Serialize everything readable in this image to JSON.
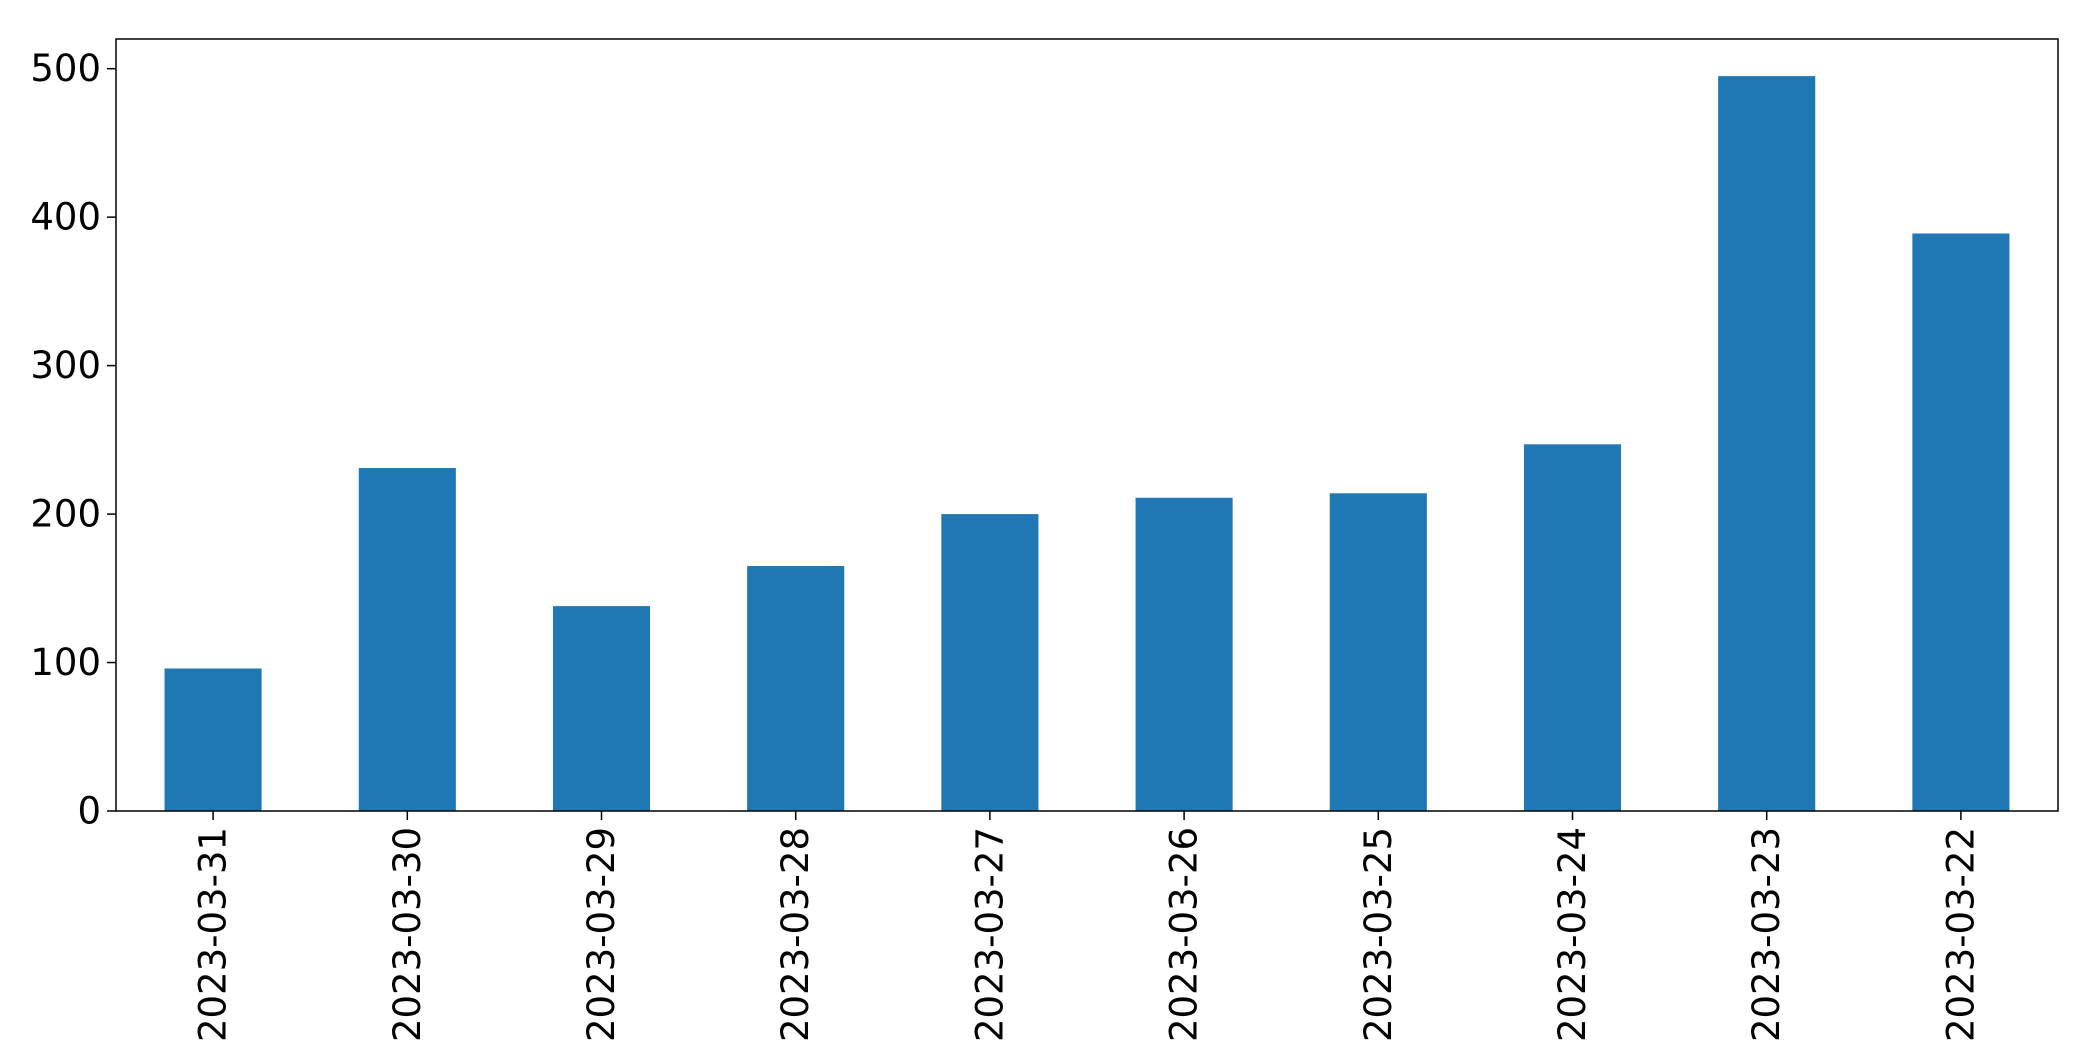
{
  "chart_data": {
    "type": "bar",
    "title": "",
    "xlabel": "",
    "ylabel": "",
    "categories": [
      "2023-03-31",
      "2023-03-30",
      "2023-03-29",
      "2023-03-28",
      "2023-03-27",
      "2023-03-26",
      "2023-03-25",
      "2023-03-24",
      "2023-03-23",
      "2023-03-22"
    ],
    "values": [
      96,
      231,
      138,
      165,
      200,
      211,
      214,
      247,
      495,
      389
    ],
    "ylim": [
      0,
      520
    ],
    "yticks": [
      0,
      100,
      200,
      300,
      400,
      500
    ],
    "grid": false,
    "legend": "none",
    "colors": {
      "bar": "#1f77b4",
      "axis": "#000000",
      "background": "#ffffff"
    }
  }
}
